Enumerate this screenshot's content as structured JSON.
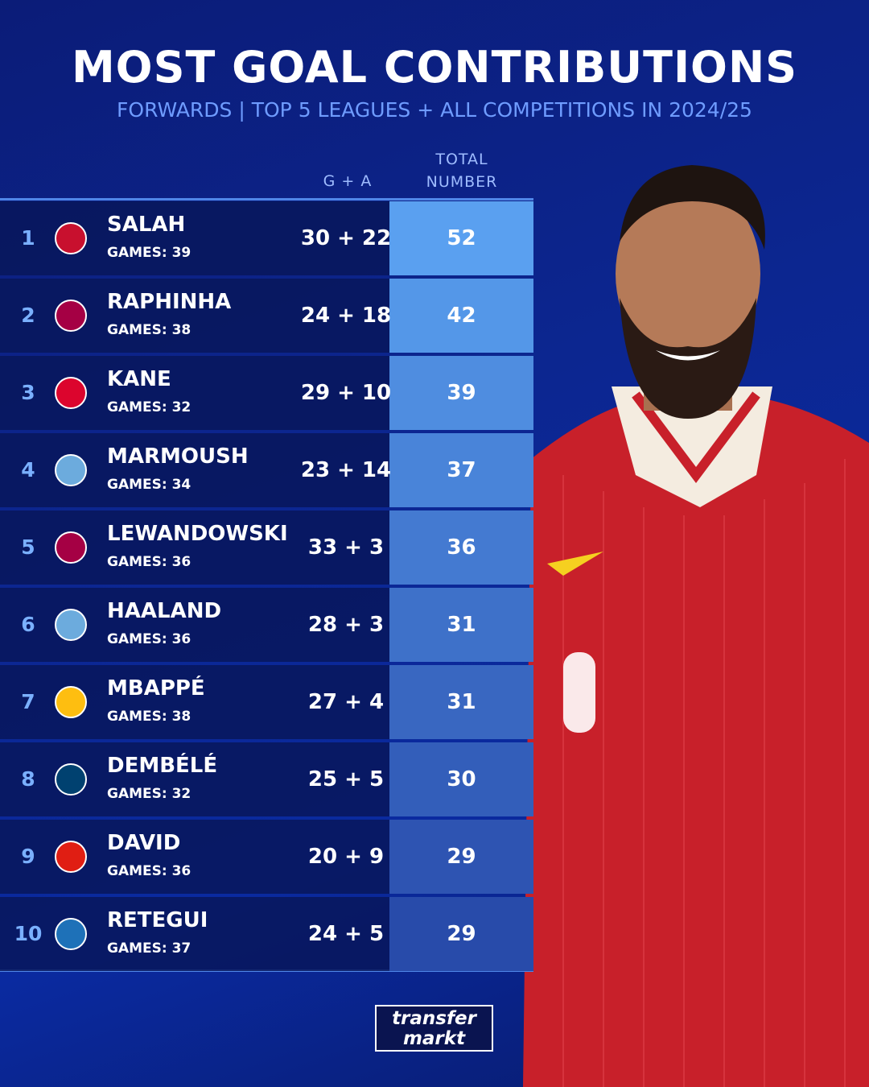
{
  "header": {
    "title": "MOST GOAL CONTRIBUTIONS",
    "subtitle": "FORWARDS | TOP 5 LEAGUES + ALL COMPETITIONS IN 2024/25"
  },
  "table": {
    "columns": [
      "G + A",
      "TOTAL NUMBER"
    ],
    "rows": [
      [
        "1",
        "SALAH",
        "GAMES: 39",
        "30 + 22",
        "52"
      ],
      [
        "2",
        "RAPHINHA",
        "GAMES: 38",
        "24 + 18",
        "42"
      ],
      [
        "3",
        "KANE",
        "GAMES: 32",
        "29 + 10",
        "39"
      ],
      [
        "4",
        "MARMOUSH",
        "GAMES: 34",
        "23 + 14",
        "37"
      ],
      [
        "5",
        "LEWANDOWSKI",
        "GAMES: 36",
        "33 + 3",
        "36"
      ],
      [
        "6",
        "HAALAND",
        "GAMES: 36",
        "28 + 3",
        "31"
      ],
      [
        "7",
        "MBAPPÉ",
        "GAMES: 38",
        "27 + 4",
        "31"
      ],
      [
        "8",
        "DEMBÉLÉ",
        "GAMES: 32",
        "25 + 5",
        "30"
      ],
      [
        "9",
        "DAVID",
        "GAMES: 36",
        "20 + 9",
        "29"
      ],
      [
        "10",
        "RETEGUI",
        "GAMES: 37",
        "24 + 5",
        "29"
      ]
    ]
  },
  "logo": {
    "line1": "transfer",
    "line2": "markt"
  }
}
